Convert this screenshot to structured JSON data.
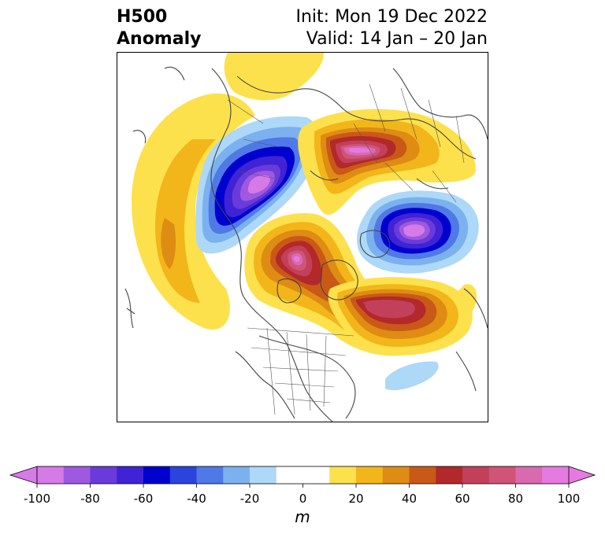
{
  "title": {
    "left_line1": "H500",
    "left_line2": "Anomaly",
    "right_line1": "Init: Mon 19 Dec 2022",
    "right_line2": "Valid: 14 Jan – 20 Jan"
  },
  "colorbar": {
    "unit": "m",
    "ticks": [
      "-100",
      "-80",
      "-60",
      "-40",
      "-20",
      "0",
      "20",
      "40",
      "60",
      "80",
      "100"
    ],
    "levels": [
      -100,
      -90,
      -80,
      -70,
      -60,
      -50,
      -40,
      -30,
      -20,
      -10,
      10,
      20,
      30,
      40,
      50,
      60,
      70,
      80,
      90,
      100
    ],
    "colors": [
      "#d67ae8",
      "#9f58e0",
      "#6a3bda",
      "#3f23d4",
      "#0000cf",
      "#2a44dc",
      "#4f79e6",
      "#7cb1ef",
      "#add8f8",
      "#ffffff",
      "#fde14c",
      "#f2b61a",
      "#de8c14",
      "#c95917",
      "#b3282a",
      "#c2405a",
      "#cf5478",
      "#d96ab0",
      "#e57ae0"
    ],
    "under_color": "#d67ae8",
    "over_color": "#e57ae0"
  },
  "map": {
    "projection": "north polar stereographic",
    "region": "Northern Hemisphere"
  }
}
